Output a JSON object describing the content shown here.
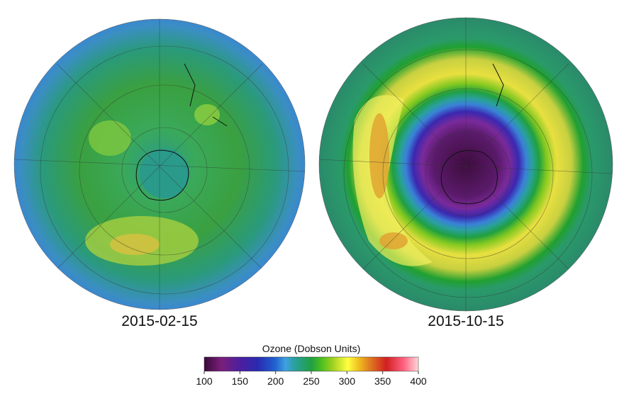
{
  "maps": [
    {
      "date": "2015-02-15"
    },
    {
      "date": "2015-10-15"
    }
  ],
  "colorbar": {
    "title": "Ozone (Dobson Units)",
    "range": [
      100,
      400
    ],
    "ticks": [
      100,
      150,
      200,
      250,
      300,
      350,
      400
    ]
  }
}
